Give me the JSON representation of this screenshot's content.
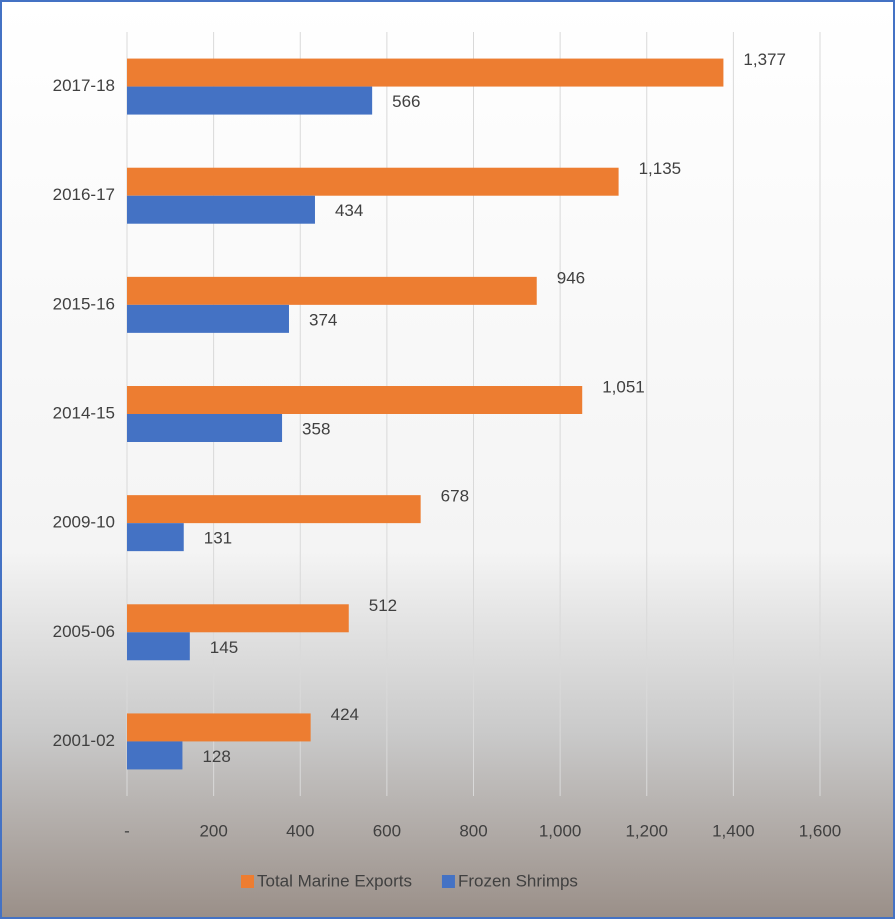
{
  "chart_data": {
    "type": "bar",
    "orientation": "horizontal",
    "categories": [
      "2017-18",
      "2016-17",
      "2015-16",
      "2014-15",
      "2009-10",
      "2005-06",
      "2001-02"
    ],
    "series": [
      {
        "name": "Total Marine Exports",
        "color": "#ed7d31",
        "values": [
          1377,
          1135,
          946,
          1051,
          678,
          512,
          424
        ],
        "value_labels": [
          "1,377",
          "1,135",
          "946",
          "1,051",
          "678",
          "512",
          "424"
        ]
      },
      {
        "name": "Frozen Shrimps",
        "color": "#4472c4",
        "values": [
          566,
          434,
          374,
          358,
          131,
          145,
          128
        ]
      }
    ],
    "xlim": [
      0,
      1600
    ],
    "xticks": [
      {
        "value": 0,
        "label": "-"
      },
      200,
      400,
      600,
      800,
      {
        "value": 1000,
        "label": "1,000"
      },
      {
        "value": 1200,
        "label": "1,200"
      },
      {
        "value": 1400,
        "label": "1,400"
      },
      {
        "value": 1600,
        "label": "1,600"
      }
    ],
    "grid": true,
    "legend": "bottom"
  }
}
